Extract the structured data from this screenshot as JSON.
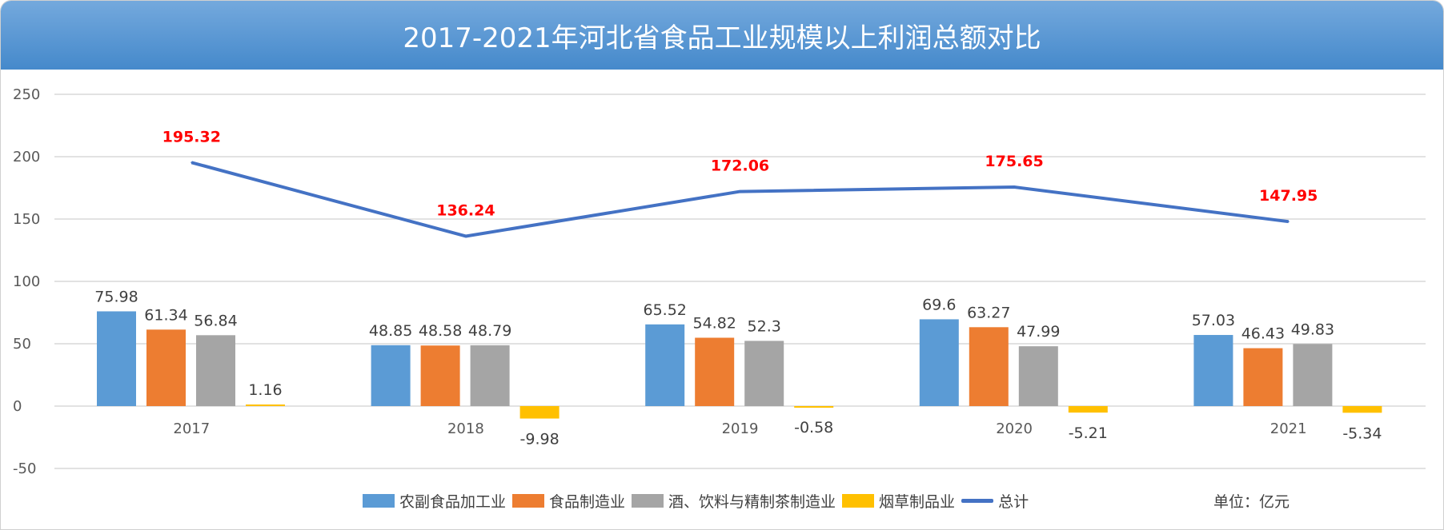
{
  "title": "2017-2021年河北省食品工业规模以上利润总额对比",
  "unit": "单位：亿元",
  "chart_data": {
    "type": "bar",
    "title": "2017-2021年河北省食品工业规模以上利润总额对比",
    "categories": [
      "2017",
      "2018",
      "2019",
      "2020",
      "2021"
    ],
    "ylim": [
      -50,
      250
    ],
    "yticks": [
      250,
      200,
      150,
      100,
      50,
      0,
      -50
    ],
    "grid": true,
    "legend_position": "bottom",
    "series": [
      {
        "name": "农副食品加工业",
        "kind": "bar",
        "color": "#5b9bd5",
        "values": [
          75.98,
          48.85,
          65.52,
          69.6,
          57.03
        ]
      },
      {
        "name": "食品制造业",
        "kind": "bar",
        "color": "#ed7d31",
        "values": [
          61.34,
          48.58,
          54.82,
          63.27,
          46.43
        ]
      },
      {
        "name": "酒、饮料与精制茶制造业",
        "kind": "bar",
        "color": "#a5a5a5",
        "values": [
          56.84,
          48.79,
          52.3,
          47.99,
          49.83
        ]
      },
      {
        "name": "烟草制品业",
        "kind": "bar",
        "color": "#ffc000",
        "values": [
          1.16,
          -9.98,
          -0.58,
          -5.21,
          -5.34
        ]
      },
      {
        "name": "总计",
        "kind": "line",
        "color": "#4472c4",
        "label_color": "#ff0000",
        "values": [
          195.32,
          136.24,
          172.06,
          175.65,
          147.95
        ]
      }
    ]
  }
}
